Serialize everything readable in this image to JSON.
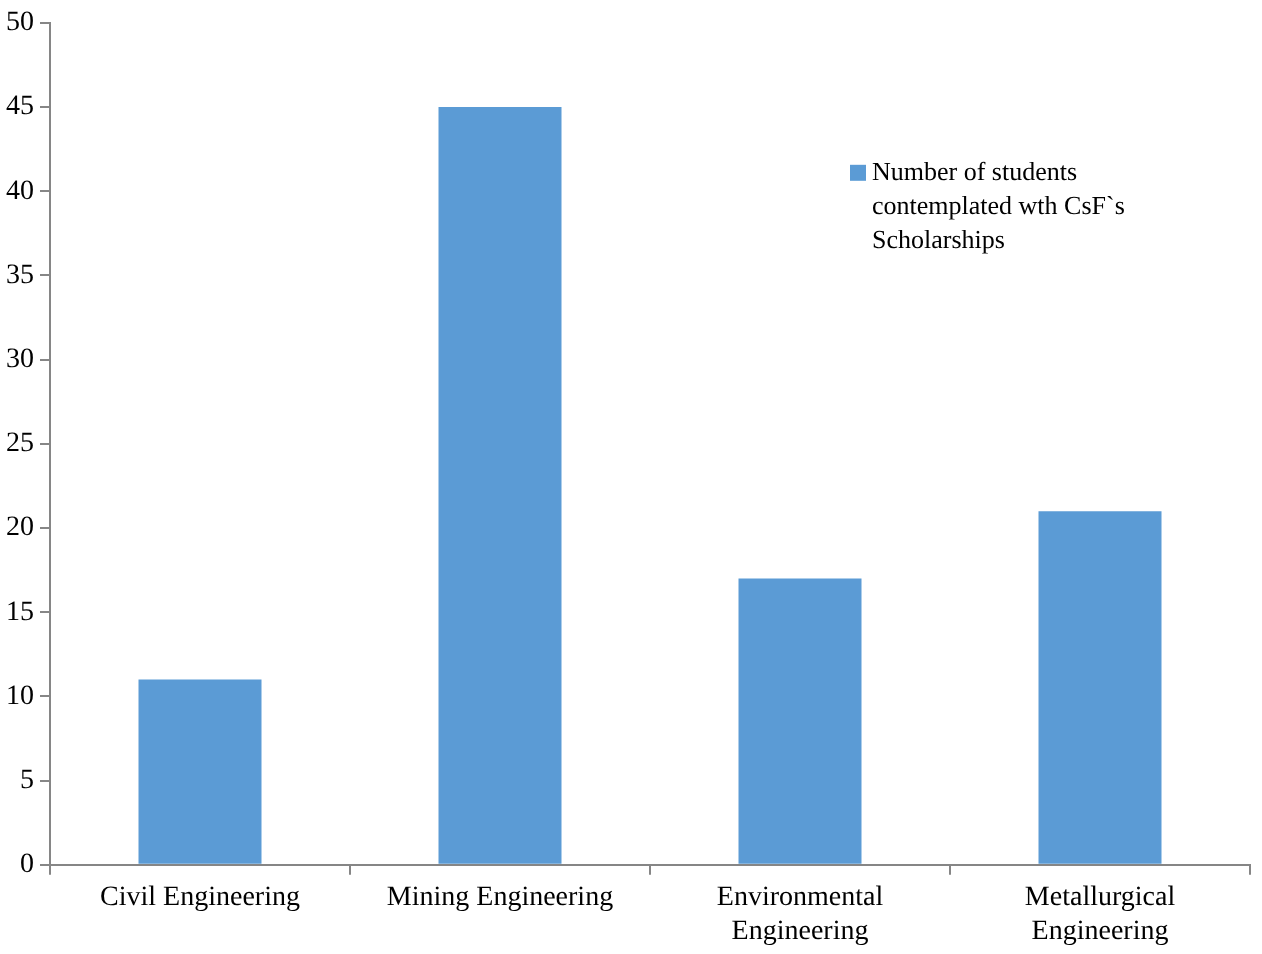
{
  "chart_data": {
    "type": "bar",
    "categories": [
      "Civil Engineering",
      "Mining Engineering",
      "Environmental Engineering",
      "Metallurgical Engineering"
    ],
    "series": [
      {
        "name": "Number of students contemplated wth CsF`s Scholarships",
        "color": "#5b9bd5",
        "values": [
          11,
          45,
          17,
          21
        ]
      }
    ],
    "ylim": [
      0,
      50
    ],
    "yticks": [
      0,
      5,
      10,
      15,
      20,
      25,
      30,
      35,
      40,
      45,
      50
    ],
    "grid": false,
    "legend": "top right"
  }
}
